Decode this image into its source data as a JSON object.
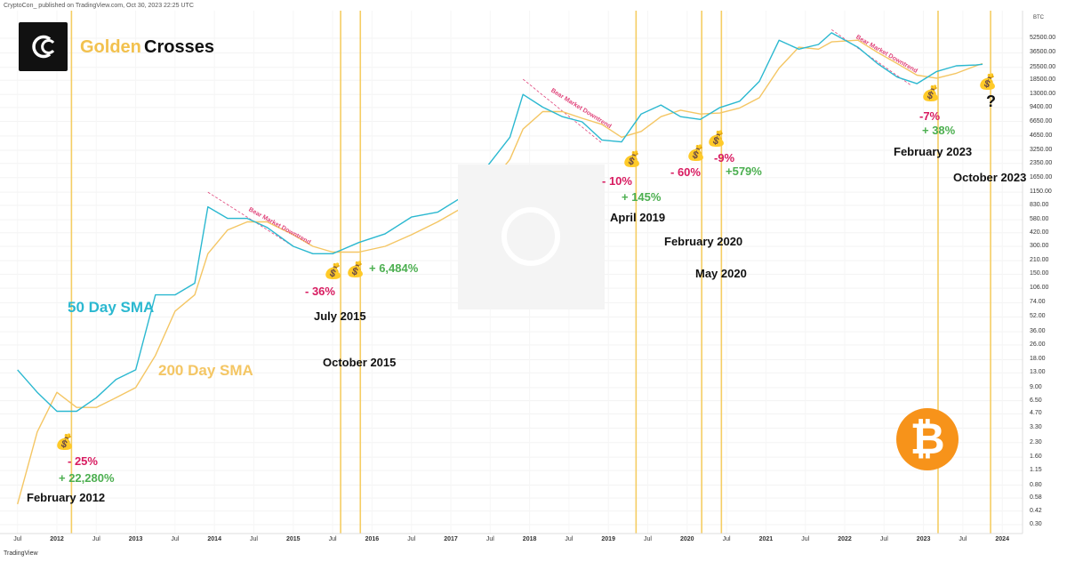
{
  "header": {
    "published_line": "CryptoCon_ published on TradingView.com, Oct 30, 2023 22:25 UTC",
    "footer_brand": "TradingView"
  },
  "title": {
    "golden": "Golden",
    "crosses": "Crosses"
  },
  "legend": {
    "sma50": "50 Day SMA",
    "sma200": "200 Day SMA"
  },
  "currency": "BTC",
  "colors": {
    "sma50": "#2bb8d0",
    "sma200": "#f4c664",
    "cross_line": "#f5cd63",
    "drop": "#d81b60",
    "gain": "#4caf50",
    "bitcoin": "#f7931a"
  },
  "chart_data": {
    "type": "line",
    "title": "Golden Crosses",
    "y_scale": "log",
    "y_ticks": [
      "0.30",
      "0.42",
      "0.58",
      "0.80",
      "1.15",
      "1.60",
      "2.30",
      "3.30",
      "4.70",
      "6.50",
      "9.00",
      "13.00",
      "18.00",
      "26.00",
      "36.00",
      "52.00",
      "74.00",
      "106.00",
      "150.00",
      "210.00",
      "300.00",
      "420.00",
      "580.00",
      "830.00",
      "1150.00",
      "1650.00",
      "2350.00",
      "3250.00",
      "4650.00",
      "6650.00",
      "9400.00",
      "13000.00",
      "18500.00",
      "25500.00",
      "36500.00",
      "52500.00"
    ],
    "x_ticks": [
      "Jul",
      "2012",
      "Jul",
      "2013",
      "Jul",
      "2014",
      "Jul",
      "2015",
      "Jul",
      "2016",
      "Jul",
      "2017",
      "Jul",
      "2018",
      "Jul",
      "2019",
      "Jul",
      "2020",
      "Jul",
      "2021",
      "Jul",
      "2022",
      "Jul",
      "2023",
      "Jul",
      "2024"
    ],
    "series": [
      {
        "name": "50 Day SMA",
        "x": [
          "2011-07",
          "2011-10",
          "2012-01",
          "2012-04",
          "2012-07",
          "2012-10",
          "2013-01",
          "2013-04",
          "2013-07",
          "2013-10",
          "2013-12",
          "2014-03",
          "2014-06",
          "2014-09",
          "2015-01",
          "2015-04",
          "2015-07",
          "2015-11",
          "2016-03",
          "2016-07",
          "2016-11",
          "2017-03",
          "2017-07",
          "2017-10",
          "2017-12",
          "2018-03",
          "2018-06",
          "2018-09",
          "2018-12",
          "2019-03",
          "2019-06",
          "2019-09",
          "2019-12",
          "2020-03",
          "2020-06",
          "2020-09",
          "2020-12",
          "2021-03",
          "2021-06",
          "2021-09",
          "2021-11",
          "2022-03",
          "2022-06",
          "2022-09",
          "2022-12",
          "2023-03",
          "2023-06",
          "2023-09",
          "2023-10"
        ],
        "values": [
          14,
          8,
          5,
          5,
          7,
          11,
          14,
          90,
          90,
          120,
          800,
          600,
          600,
          480,
          300,
          250,
          250,
          330,
          410,
          620,
          700,
          1050,
          2400,
          4500,
          13000,
          9500,
          7500,
          6600,
          4200,
          4000,
          8000,
          10000,
          7500,
          7000,
          9400,
          11000,
          18000,
          50000,
          40000,
          45000,
          60000,
          42000,
          28000,
          20000,
          17000,
          23000,
          26500,
          27000,
          27500
        ]
      },
      {
        "name": "200 Day SMA",
        "x": [
          "2011-07",
          "2011-10",
          "2012-01",
          "2012-04",
          "2012-07",
          "2012-10",
          "2013-01",
          "2013-04",
          "2013-07",
          "2013-10",
          "2013-12",
          "2014-03",
          "2014-06",
          "2014-09",
          "2015-01",
          "2015-04",
          "2015-07",
          "2015-11",
          "2016-03",
          "2016-07",
          "2016-11",
          "2017-03",
          "2017-07",
          "2017-10",
          "2017-12",
          "2018-03",
          "2018-06",
          "2018-09",
          "2018-12",
          "2019-03",
          "2019-06",
          "2019-09",
          "2019-12",
          "2020-03",
          "2020-06",
          "2020-09",
          "2020-12",
          "2021-03",
          "2021-06",
          "2021-09",
          "2021-11",
          "2022-03",
          "2022-06",
          "2022-09",
          "2022-12",
          "2023-03",
          "2023-06",
          "2023-09",
          "2023-10"
        ],
        "values": [
          0.5,
          3,
          8,
          5.5,
          5.5,
          7,
          9,
          20,
          60,
          90,
          250,
          450,
          550,
          550,
          400,
          300,
          260,
          260,
          300,
          400,
          550,
          800,
          1400,
          2600,
          5500,
          8500,
          8500,
          7200,
          6200,
          4500,
          5200,
          7500,
          8800,
          8000,
          8200,
          9300,
          12000,
          25000,
          42000,
          40000,
          48000,
          50000,
          37000,
          28000,
          21000,
          19500,
          22000,
          26500,
          28000
        ]
      }
    ],
    "annotations": {
      "dates": [
        "February 2012",
        "July 2015",
        "October 2015",
        "April 2019",
        "February 2020",
        "May 2020",
        "February 2023",
        "October 2023"
      ],
      "drops": [
        "- 25%",
        "- 36%",
        "- 10%",
        "- 60%",
        "-9%",
        "-7%"
      ],
      "gains": [
        "+ 22,280%",
        "+ 6,484%",
        "+ 145%",
        "+579%",
        "+ 38%"
      ],
      "trend_labels": [
        "Bear Market Downtrend",
        "Bear Market Downtrend",
        "Bear Market Downtrend"
      ],
      "question": "?"
    }
  }
}
